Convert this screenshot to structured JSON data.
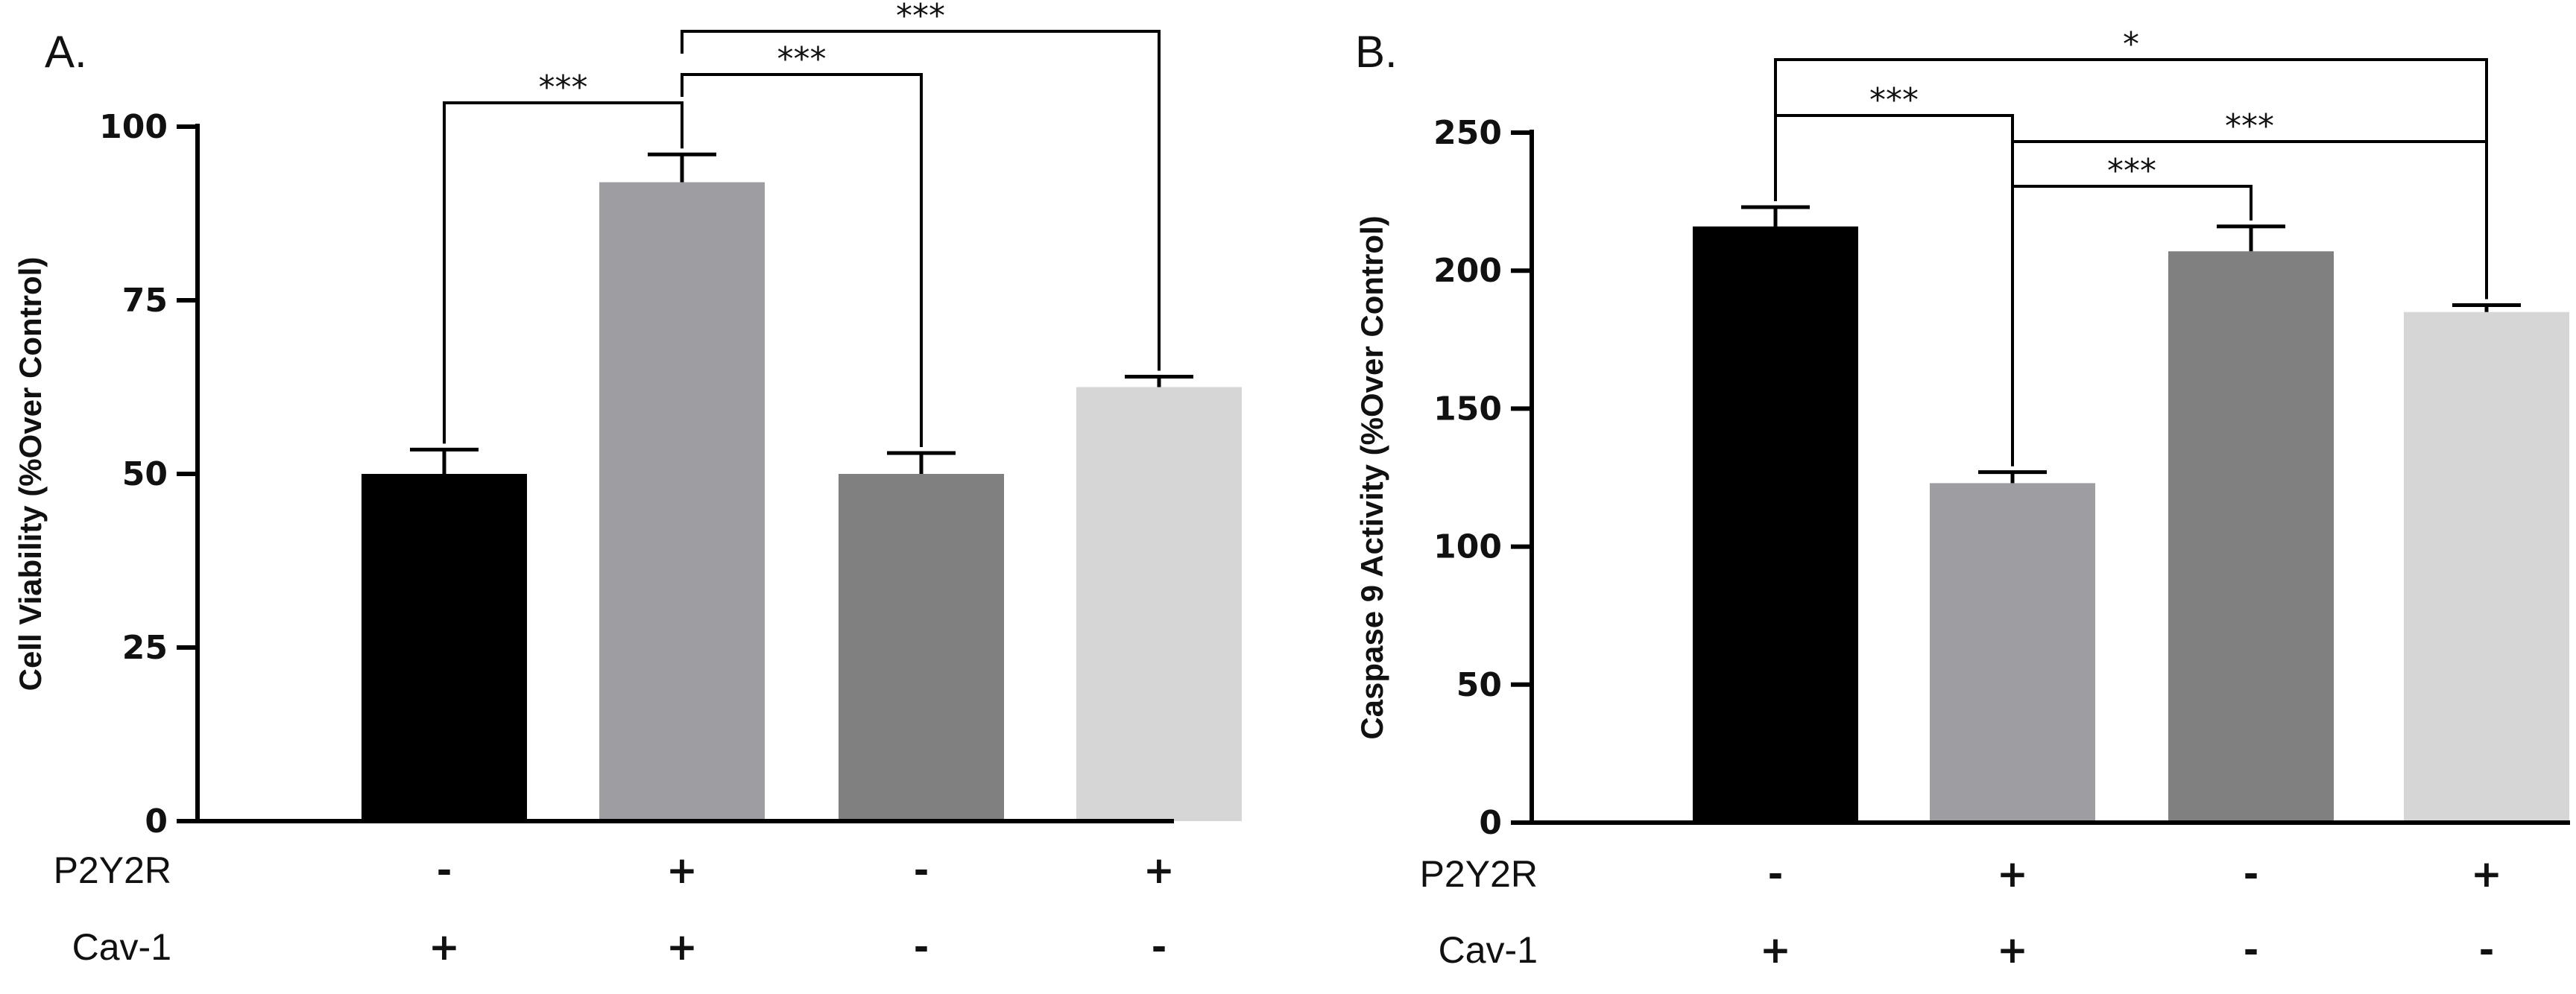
{
  "chart_data": [
    {
      "type": "bar",
      "panel_label": "A.",
      "ylabel": "Cell Viability (%Over Control)",
      "ylim": [
        0,
        100
      ],
      "yticks": [
        "0",
        "25",
        "50",
        "75",
        "100"
      ],
      "values": [
        50,
        92,
        50,
        62.5
      ],
      "errors": [
        3.5,
        4,
        3,
        1.5
      ],
      "colors": [
        "#000000",
        "#9e9ea2",
        "#808080",
        "#d6d6d6"
      ],
      "conditions": [
        {
          "label": "P2Y2R",
          "signs": [
            "-",
            "+",
            "-",
            "+"
          ]
        },
        {
          "label": "Cav-1",
          "signs": [
            "+",
            "+",
            "-",
            "-"
          ]
        }
      ],
      "significance": [
        {
          "from": 0,
          "to": 1,
          "label": "***"
        },
        {
          "from": 1,
          "to": 2,
          "label": "***"
        },
        {
          "from": 1,
          "to": 3,
          "label": "***"
        }
      ]
    },
    {
      "type": "bar",
      "panel_label": "B.",
      "ylabel": "Caspase 9 Activity (%Over Control)",
      "ylim": [
        0,
        250
      ],
      "yticks": [
        "0",
        "50",
        "100",
        "150",
        "200",
        "250"
      ],
      "values": [
        216,
        123,
        207,
        185
      ],
      "errors": [
        7,
        4,
        9,
        2.5
      ],
      "colors": [
        "#000000",
        "#9e9ea2",
        "#808080",
        "#d6d6d6"
      ],
      "conditions": [
        {
          "label": "P2Y2R",
          "signs": [
            "-",
            "+",
            "-",
            "+"
          ]
        },
        {
          "label": "Cav-1",
          "signs": [
            "+",
            "+",
            "-",
            "-"
          ]
        }
      ],
      "significance": [
        {
          "from": 0,
          "to": 3,
          "label": "*"
        },
        {
          "from": 0,
          "to": 1,
          "label": "***"
        },
        {
          "from": 1,
          "to": 3,
          "label": "***"
        },
        {
          "from": 1,
          "to": 2,
          "label": "***"
        }
      ]
    }
  ]
}
